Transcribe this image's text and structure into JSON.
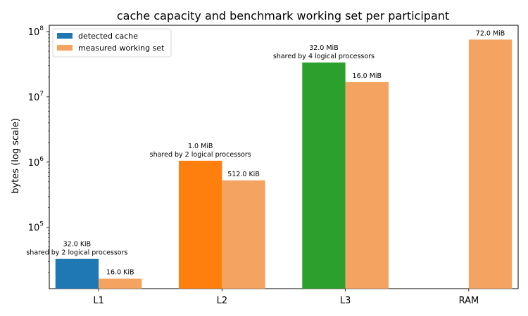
{
  "chart_data": {
    "type": "bar",
    "title": "cache capacity and benchmark working set per participant",
    "xlabel": "",
    "ylabel": "bytes (log scale)",
    "yscale": "log",
    "ylim": [
      11500,
      125000000
    ],
    "ytick_labels": [
      {
        "value": 100000,
        "base": "10",
        "exp": "5"
      },
      {
        "value": 1000000,
        "base": "10",
        "exp": "6"
      },
      {
        "value": 10000000,
        "base": "10",
        "exp": "7"
      },
      {
        "value": 100000000,
        "base": "10",
        "exp": "8"
      }
    ],
    "categories": [
      "L1",
      "L2",
      "L3",
      "RAM"
    ],
    "legend_position": "top-left",
    "series": [
      {
        "name": "detected cache",
        "legend_color": "#1f77b4",
        "values": [
          32768,
          1048576,
          33554432,
          null
        ],
        "colors": [
          "#1f77b4",
          "#ff7f0e",
          "#2ca02c",
          null
        ],
        "labels": [
          [
            "32.0 KiB",
            "shared by 2 logical processors"
          ],
          [
            "1.0 MiB",
            "shared by 2 logical processors"
          ],
          [
            "32.0 MiB",
            "shared by 4 logical processors"
          ],
          null
        ]
      },
      {
        "name": "measured working set",
        "legend_color": "#f4a460",
        "values": [
          16384,
          524288,
          16777216,
          75497472
        ],
        "colors": [
          "#f4a460",
          "#f4a460",
          "#f4a460",
          "#f4a460"
        ],
        "labels": [
          [
            "16.0 KiB"
          ],
          [
            "512.0 KiB"
          ],
          [
            "16.0 MiB"
          ],
          [
            "72.0 MiB"
          ]
        ]
      }
    ]
  }
}
